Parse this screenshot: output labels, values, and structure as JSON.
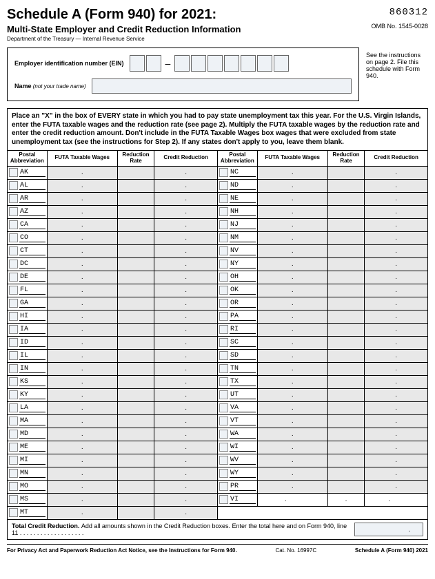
{
  "header": {
    "title": "Schedule A (Form 940) for 2021:",
    "form_number": "860312",
    "subtitle": "Multi-State Employer and Credit Reduction Information",
    "omb": "OMB No. 1545-0028",
    "dept": "Department of the Treasury — Internal Revenue Service"
  },
  "ein": {
    "label": "Employer identification number (EIN)",
    "name_label": "Name",
    "name_trade": " (not your trade name)"
  },
  "side_note": "See the instructions on page 2. File this schedule with Form 940.",
  "instructions": "Place an \"X\" in the box of EVERY state in which you had to pay state unemployment tax this year. For the U.S. Virgin Islands, enter the FUTA taxable wages and the reduction rate (see page 2). Multiply the FUTA taxable wages by the reduction rate and enter the credit reduction amount. Don't include in the FUTA Taxable Wages box wages that were excluded from state unemployment tax (see the instructions for Step 2). If any states don't apply to you, leave them blank.",
  "cols": {
    "abbr": "Postal Abbreviation",
    "wages": "FUTA Taxable Wages",
    "rate": "Reduction Rate",
    "cr": "Credit Reduction"
  },
  "left_states": [
    "AK",
    "AL",
    "AR",
    "AZ",
    "CA",
    "CO",
    "CT",
    "DC",
    "DE",
    "FL",
    "GA",
    "HI",
    "IA",
    "ID",
    "IL",
    "IN",
    "KS",
    "KY",
    "LA",
    "MA",
    "MD",
    "ME",
    "MI",
    "MN",
    "MO",
    "MS",
    "MT"
  ],
  "right_states": [
    "NC",
    "ND",
    "NE",
    "NH",
    "NJ",
    "NM",
    "NV",
    "NY",
    "OH",
    "OK",
    "OR",
    "PA",
    "RI",
    "SC",
    "SD",
    "TN",
    "TX",
    "UT",
    "VA",
    "VT",
    "WA",
    "WI",
    "WV",
    "WY",
    "PR",
    "VI"
  ],
  "total": {
    "bold": "Total Credit Reduction. ",
    "text": "Add all amounts shown in the Credit Reduction boxes. Enter the total here and on Form 940, line 11",
    "dots": "  .    .    .    .    .    .    .    .    .    .    .    .    .    .    .    .    .    .    ."
  },
  "footer": {
    "left": "For Privacy Act and Paperwork Reduction Act Notice, see the Instructions for Form 940.",
    "mid": "Cat. No. 16997C",
    "right": "Schedule A (Form 940) 2021"
  }
}
